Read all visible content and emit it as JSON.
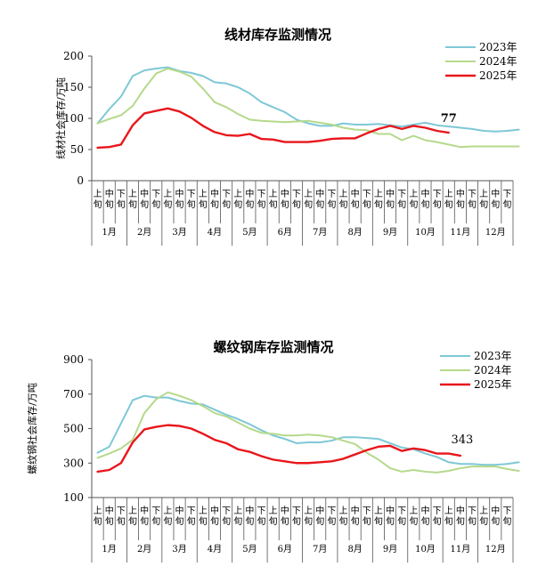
{
  "chart_data": [
    {
      "type": "line",
      "title": "线材库存监测情况",
      "ylabel": "线材社会库存/万吨",
      "ylim": [
        0,
        200
      ],
      "yticks": [
        0,
        50,
        100,
        150,
        200
      ],
      "sub_labels": [
        "上旬",
        "中旬",
        "下旬"
      ],
      "months": [
        "1月",
        "2月",
        "3月",
        "4月",
        "5月",
        "6月",
        "7月",
        "8月",
        "9月",
        "10月",
        "11月",
        "12月"
      ],
      "legend": "top-right",
      "annotation": {
        "text": "77",
        "bold": true
      },
      "series": [
        {
          "name": "2023年",
          "color": "#7ec8d6",
          "values": [
            92,
            115,
            135,
            168,
            177,
            180,
            182,
            176,
            173,
            168,
            158,
            156,
            150,
            140,
            126,
            118,
            110,
            98,
            92,
            88,
            88,
            92,
            90,
            90,
            91,
            89,
            87,
            90,
            93,
            89,
            87,
            85,
            83,
            80,
            79,
            80,
            82
          ]
        },
        {
          "name": "2024年",
          "color": "#b5d98b",
          "values": [
            92,
            99,
            105,
            120,
            148,
            172,
            180,
            175,
            167,
            148,
            126,
            118,
            107,
            98,
            96,
            95,
            94,
            95,
            96,
            93,
            90,
            85,
            82,
            81,
            75,
            75,
            65,
            72,
            65,
            62,
            58,
            54,
            55,
            55,
            55,
            55,
            55
          ]
        },
        {
          "name": "2025年",
          "color": "#e8161b",
          "values": [
            53,
            54,
            58,
            89,
            108,
            112,
            116,
            111,
            101,
            88,
            78,
            73,
            72,
            75,
            67,
            66,
            62,
            62,
            62,
            64,
            67,
            68,
            68,
            76,
            83,
            88,
            83,
            88,
            85,
            80,
            77
          ]
        }
      ]
    },
    {
      "type": "line",
      "title": "螺纹钢库存监测情况",
      "ylabel": "螺纹钢社会库存/万吨",
      "ylim": [
        100,
        900
      ],
      "yticks": [
        100,
        300,
        500,
        700,
        900
      ],
      "sub_labels": [
        "上旬",
        "中旬",
        "下旬"
      ],
      "months": [
        "1月",
        "2月",
        "3月",
        "4月",
        "5月",
        "6月",
        "7月",
        "8月",
        "9月",
        "10月",
        "11月",
        "12月"
      ],
      "legend": "top-right",
      "annotation": {
        "text": "343",
        "bold": false
      },
      "series": [
        {
          "name": "2023年",
          "color": "#7ec8d6",
          "values": [
            360,
            395,
            530,
            665,
            690,
            680,
            680,
            660,
            645,
            640,
            610,
            580,
            555,
            525,
            490,
            460,
            440,
            415,
            420,
            420,
            430,
            450,
            450,
            445,
            440,
            415,
            390,
            380,
            355,
            335,
            305,
            295,
            295,
            290,
            290,
            295,
            305
          ]
        },
        {
          "name": "2024年",
          "color": "#b5d98b",
          "values": [
            330,
            355,
            385,
            435,
            590,
            670,
            710,
            690,
            665,
            630,
            590,
            570,
            535,
            500,
            475,
            470,
            460,
            460,
            465,
            460,
            450,
            430,
            410,
            360,
            320,
            270,
            250,
            260,
            250,
            245,
            255,
            270,
            280,
            280,
            280,
            265,
            255
          ]
        },
        {
          "name": "2025年",
          "color": "#e8161b",
          "values": [
            250,
            260,
            300,
            420,
            495,
            510,
            520,
            515,
            500,
            470,
            435,
            415,
            380,
            365,
            340,
            320,
            310,
            300,
            300,
            305,
            310,
            325,
            350,
            375,
            395,
            400,
            370,
            385,
            375,
            355,
            355,
            343
          ]
        }
      ]
    }
  ]
}
